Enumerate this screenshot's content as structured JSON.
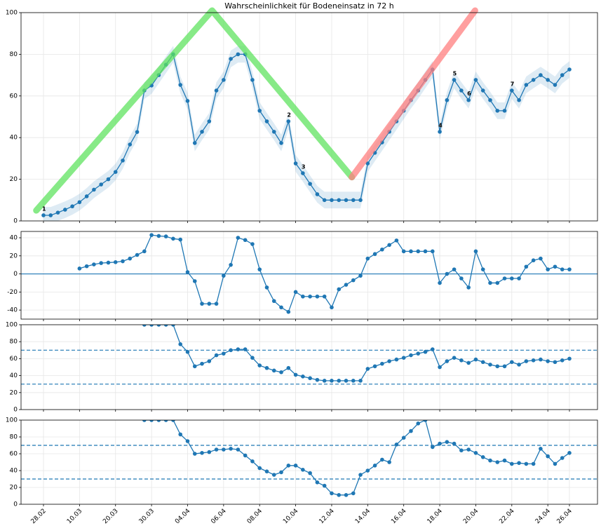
{
  "chart_data": [
    {
      "type": "line",
      "title": "Wahrscheinlichkeit für Bodeneinsatz in 72 h",
      "color": "#1f77b4",
      "grid": true,
      "ylim": [
        0,
        100
      ],
      "yticks": [
        0,
        20,
        40,
        60,
        80,
        100
      ],
      "band_halfwidth": 4,
      "values": [
        2.7,
        2.7,
        4,
        5.4,
        7,
        9,
        11.8,
        15,
        17.5,
        20,
        23.5,
        29,
        36.7,
        42.7,
        62.6,
        65,
        70,
        75,
        80,
        65.3,
        57.6,
        37.4,
        42.8,
        47.8,
        62.6,
        67.7,
        77.8,
        80,
        80,
        67.7,
        52.9,
        47.8,
        42.8,
        37.4,
        47.8,
        27.6,
        22.9,
        17.8,
        12.8,
        10,
        10,
        10,
        10,
        10,
        10,
        27.6,
        32.7,
        37.7,
        42.8,
        47.8,
        52.9,
        58,
        62.6,
        67.7,
        72.7,
        42.8,
        58,
        67.7,
        62.6,
        58,
        67.7,
        62.6,
        58,
        52.9,
        52.9,
        62.6,
        58,
        65.3,
        67.7,
        70,
        67.7,
        65.3,
        70,
        72.7
      ],
      "annotations": [
        {
          "text": "1",
          "index": 0
        },
        {
          "text": "2",
          "index": 34
        },
        {
          "text": "3",
          "index": 36
        },
        {
          "text": "4",
          "index": 55
        },
        {
          "text": "5",
          "index": 57
        },
        {
          "text": "6",
          "index": 59
        },
        {
          "text": "7",
          "index": 65
        }
      ],
      "trend_lines": [
        {
          "color": "#5fe35f",
          "x": [
            -1,
            23.4,
            42.8
          ],
          "y": [
            5,
            101,
            21
          ]
        },
        {
          "color": "#ff7f7f",
          "x": [
            42.8,
            59.9
          ],
          "y": [
            21,
            101
          ]
        }
      ]
    },
    {
      "type": "line",
      "color": "#1f77b4",
      "grid": true,
      "ylim": [
        -50,
        47
      ],
      "yticks": [
        -40,
        -20,
        0,
        20,
        40
      ],
      "hlines": [
        {
          "value": 0,
          "style": "solid"
        }
      ],
      "values": [
        null,
        null,
        null,
        null,
        null,
        6,
        8.5,
        10.5,
        12,
        12.5,
        13,
        14,
        17,
        21,
        25,
        43,
        42,
        41.5,
        39,
        38,
        2,
        -8,
        -33,
        -33,
        -33,
        -2,
        10,
        40,
        37.5,
        33,
        5,
        -15,
        -30,
        -37,
        -42,
        -20,
        -25,
        -25,
        -25,
        -25,
        -37,
        -17,
        -12,
        -7,
        -2,
        17,
        22,
        27,
        32,
        37,
        25,
        25,
        25,
        25,
        25,
        -10,
        0,
        5,
        -5,
        -15,
        25,
        5,
        -10,
        -10,
        -5,
        -5,
        -5,
        8,
        15,
        17,
        5,
        8,
        5,
        5
      ]
    },
    {
      "type": "line",
      "color": "#1f77b4",
      "grid": true,
      "ylim": [
        0,
        100
      ],
      "yticks": [
        0,
        20,
        40,
        60,
        80,
        100
      ],
      "hlines": [
        {
          "value": 70,
          "style": "dashed"
        },
        {
          "value": 30,
          "style": "dashed"
        }
      ],
      "values": [
        null,
        null,
        null,
        null,
        null,
        null,
        null,
        null,
        null,
        null,
        null,
        null,
        null,
        null,
        100,
        100,
        100,
        100,
        100,
        77,
        68,
        51,
        54,
        57,
        64,
        66,
        70,
        71,
        71,
        61,
        52,
        49,
        46,
        44,
        49,
        41,
        39,
        37,
        35,
        34,
        34,
        34,
        34,
        34,
        34,
        48,
        51,
        54,
        57,
        59,
        61,
        64,
        66,
        68,
        71,
        50,
        57,
        61,
        58,
        55,
        59,
        56,
        53,
        51,
        51,
        56,
        53,
        57,
        58,
        59,
        57,
        56,
        58,
        60
      ]
    },
    {
      "type": "line",
      "color": "#1f77b4",
      "grid": true,
      "ylim": [
        0,
        100
      ],
      "yticks": [
        0,
        20,
        40,
        60,
        80,
        100
      ],
      "hlines": [
        {
          "value": 70,
          "style": "dashed"
        },
        {
          "value": 30,
          "style": "dashed"
        }
      ],
      "values": [
        null,
        null,
        null,
        null,
        null,
        null,
        null,
        null,
        null,
        null,
        null,
        null,
        null,
        null,
        100,
        100,
        100,
        100,
        100,
        83,
        75,
        60,
        61,
        62,
        65,
        65,
        66,
        65,
        58,
        51,
        43,
        39,
        35,
        38,
        46,
        46,
        41,
        37,
        26,
        22,
        13,
        11,
        11,
        13,
        35,
        40,
        46,
        53,
        50,
        71,
        79,
        87,
        96,
        100,
        68,
        72,
        74,
        72,
        64,
        65,
        61,
        56,
        52,
        50,
        52,
        48,
        49,
        48,
        48,
        66,
        57,
        48,
        55,
        61
      ],
      "categories": [
        "28.02",
        null,
        null,
        null,
        null,
        "10.03",
        null,
        null,
        null,
        null,
        "20.03",
        null,
        null,
        null,
        null,
        "30.03",
        null,
        null,
        null,
        null,
        "04.04",
        null,
        null,
        null,
        null,
        "06.04",
        null,
        null,
        null,
        null,
        "08.04",
        null,
        null,
        null,
        null,
        "10.04",
        null,
        null,
        null,
        null,
        "12.04",
        null,
        null,
        null,
        null,
        "14.04",
        null,
        null,
        null,
        null,
        "16.04",
        null,
        null,
        null,
        null,
        "18.04",
        null,
        null,
        null,
        null,
        "20.04",
        null,
        null,
        null,
        null,
        "22.04",
        null,
        null,
        null,
        null,
        "24.04",
        null,
        null,
        "26.04"
      ]
    }
  ]
}
